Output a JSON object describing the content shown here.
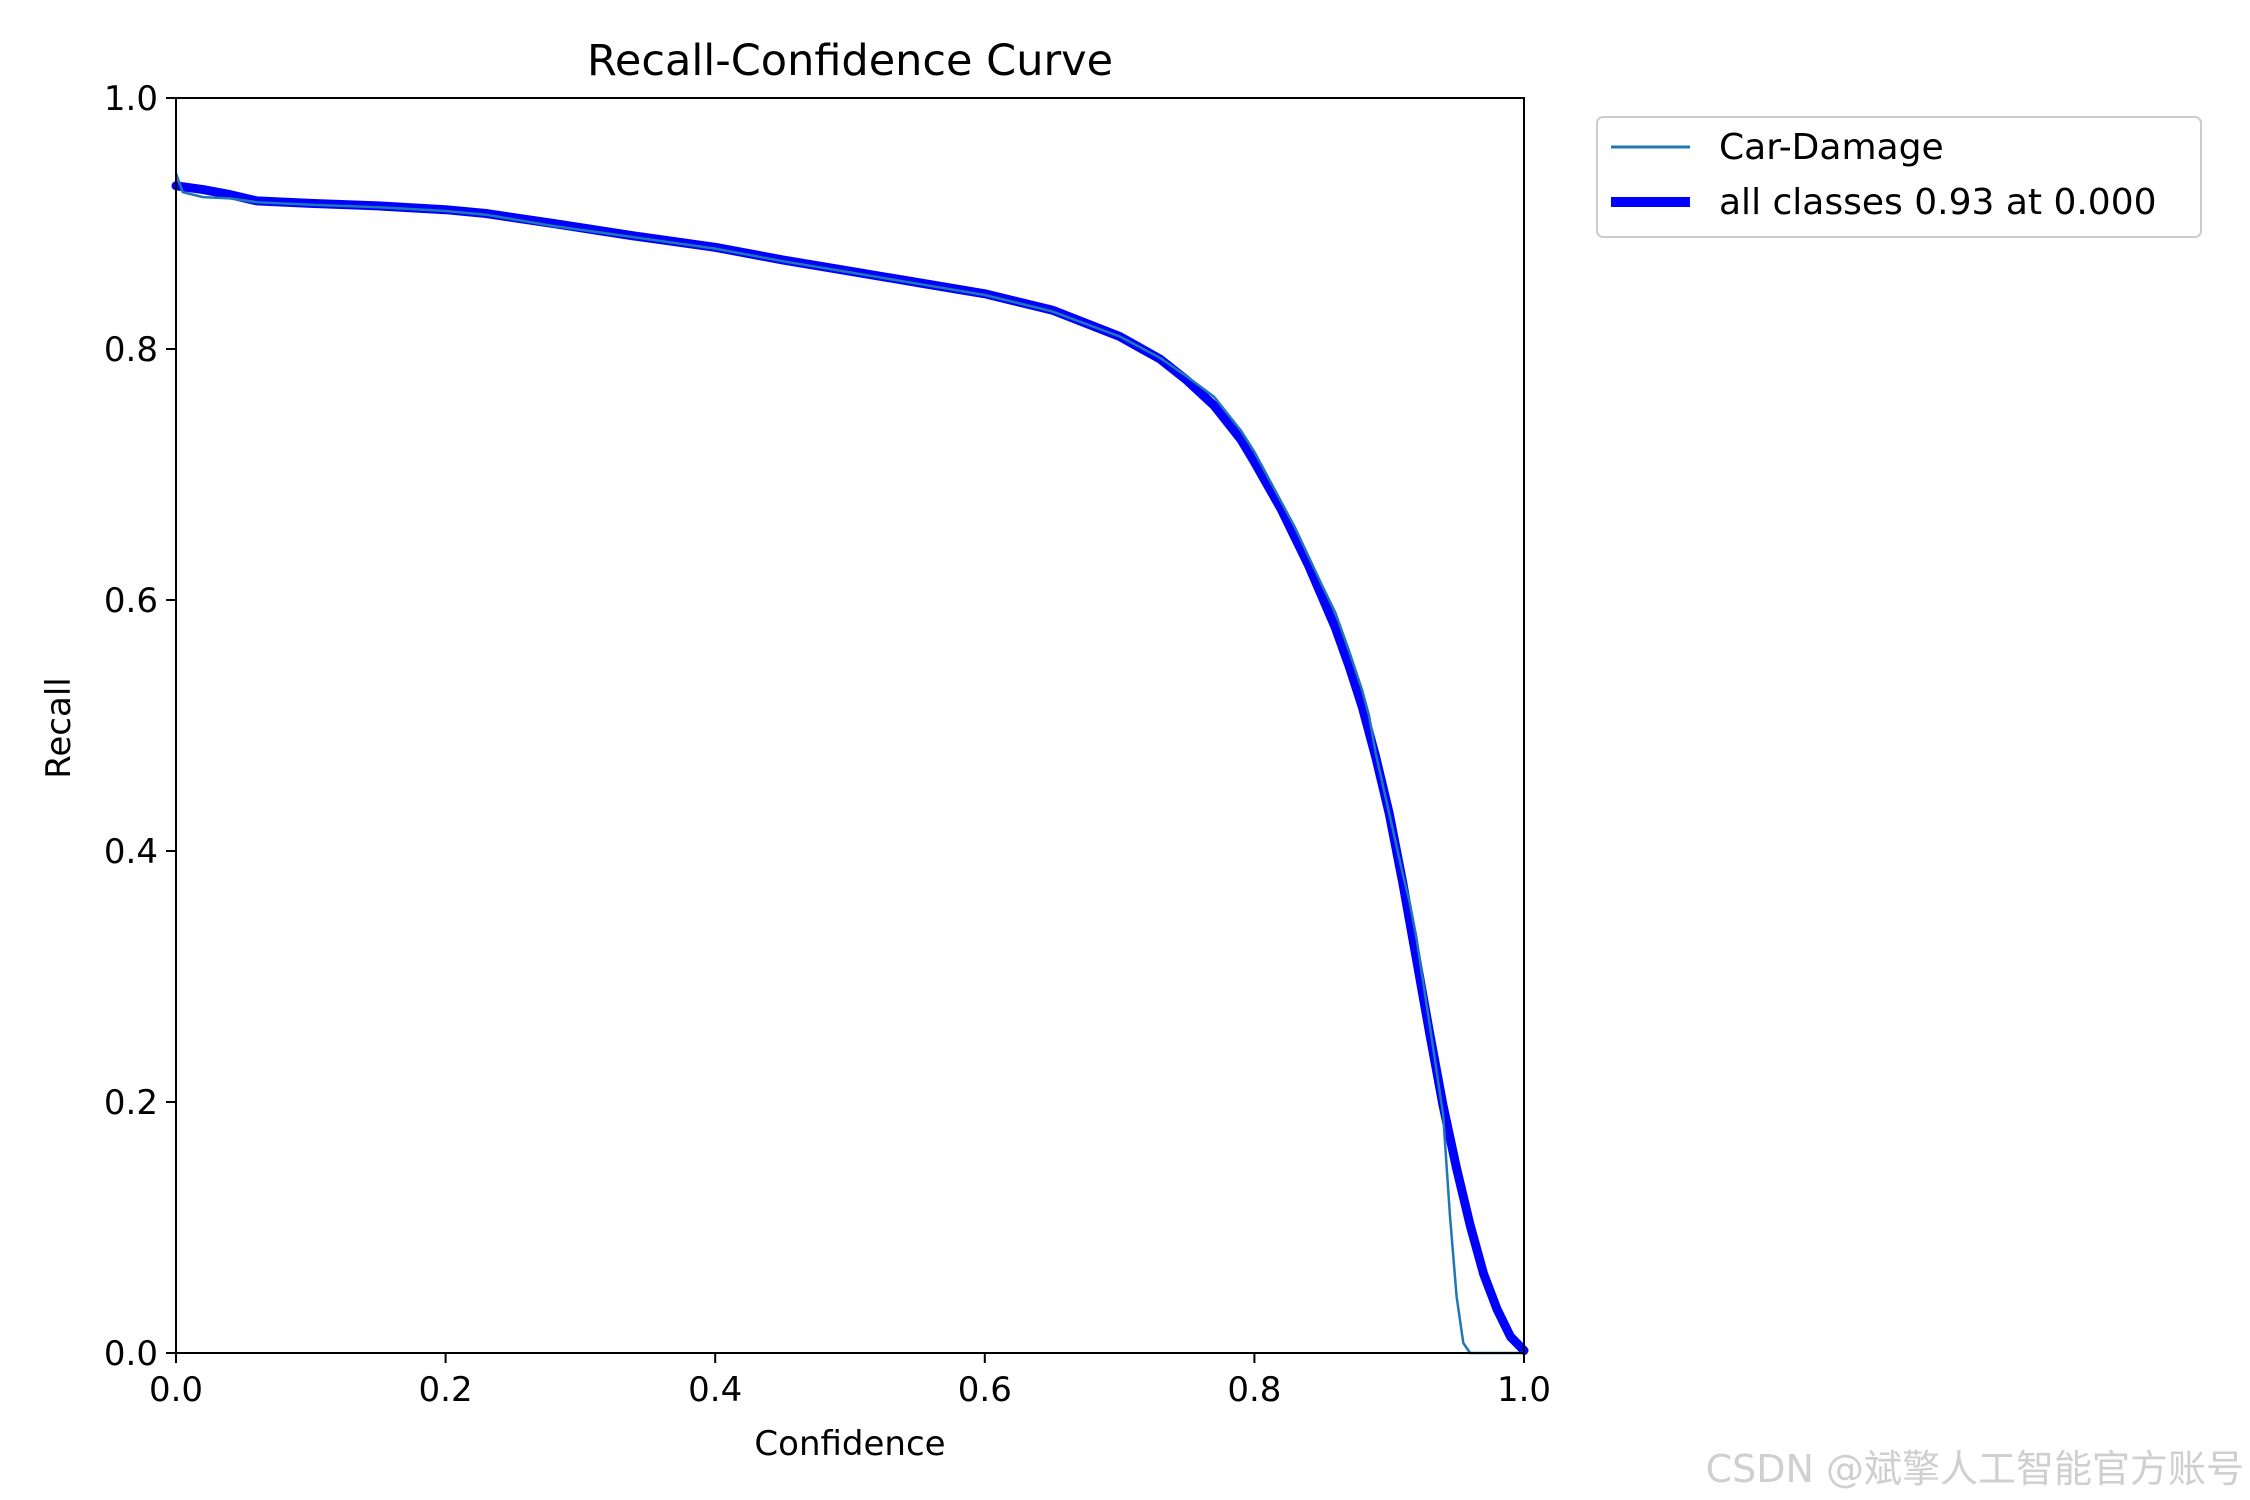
{
  "watermark": "CSDN @斌擎人工智能官方账号",
  "chart_data": {
    "type": "line",
    "title": "Recall-Confidence Curve",
    "xlabel": "Confidence",
    "ylabel": "Recall",
    "xlim": [
      0.0,
      1.0
    ],
    "ylim": [
      0.0,
      1.0
    ],
    "xticks": [
      "0.0",
      "0.2",
      "0.4",
      "0.6",
      "0.8",
      "1.0"
    ],
    "yticks": [
      "0.0",
      "0.2",
      "0.4",
      "0.6",
      "0.8",
      "1.0"
    ],
    "grid": false,
    "legend_position": "outside-top-right",
    "series": [
      {
        "name": "Car-Damage",
        "color": "#1f77b4",
        "style": "thin",
        "points": [
          [
            0.0,
            0.94
          ],
          [
            0.005,
            0.925
          ],
          [
            0.02,
            0.921
          ],
          [
            0.04,
            0.92
          ],
          [
            0.06,
            0.917
          ],
          [
            0.1,
            0.915
          ],
          [
            0.15,
            0.913
          ],
          [
            0.2,
            0.91
          ],
          [
            0.23,
            0.907
          ],
          [
            0.28,
            0.898
          ],
          [
            0.34,
            0.889
          ],
          [
            0.4,
            0.88
          ],
          [
            0.45,
            0.87
          ],
          [
            0.5,
            0.861
          ],
          [
            0.55,
            0.852
          ],
          [
            0.6,
            0.843
          ],
          [
            0.65,
            0.83
          ],
          [
            0.7,
            0.81
          ],
          [
            0.73,
            0.793
          ],
          [
            0.75,
            0.778
          ],
          [
            0.77,
            0.762
          ],
          [
            0.79,
            0.735
          ],
          [
            0.8,
            0.718
          ],
          [
            0.81,
            0.698
          ],
          [
            0.83,
            0.658
          ],
          [
            0.85,
            0.612
          ],
          [
            0.86,
            0.59
          ],
          [
            0.87,
            0.56
          ],
          [
            0.88,
            0.528
          ],
          [
            0.885,
            0.508
          ],
          [
            0.89,
            0.478
          ],
          [
            0.9,
            0.43
          ],
          [
            0.91,
            0.382
          ],
          [
            0.915,
            0.36
          ],
          [
            0.92,
            0.332
          ],
          [
            0.93,
            0.262
          ],
          [
            0.94,
            0.19
          ],
          [
            0.945,
            0.11
          ],
          [
            0.95,
            0.045
          ],
          [
            0.955,
            0.008
          ],
          [
            0.96,
            0.0
          ],
          [
            0.97,
            0.0
          ],
          [
            1.0,
            0.0
          ]
        ]
      },
      {
        "name": "all classes 0.93 at 0.000",
        "color": "#0000ff",
        "style": "thick",
        "points": [
          [
            0.0,
            0.93
          ],
          [
            0.02,
            0.927
          ],
          [
            0.04,
            0.923
          ],
          [
            0.06,
            0.918
          ],
          [
            0.1,
            0.916
          ],
          [
            0.15,
            0.914
          ],
          [
            0.2,
            0.911
          ],
          [
            0.23,
            0.908
          ],
          [
            0.28,
            0.9
          ],
          [
            0.34,
            0.89
          ],
          [
            0.4,
            0.881
          ],
          [
            0.45,
            0.871
          ],
          [
            0.5,
            0.862
          ],
          [
            0.55,
            0.853
          ],
          [
            0.6,
            0.844
          ],
          [
            0.65,
            0.831
          ],
          [
            0.7,
            0.81
          ],
          [
            0.73,
            0.792
          ],
          [
            0.75,
            0.775
          ],
          [
            0.77,
            0.755
          ],
          [
            0.79,
            0.728
          ],
          [
            0.8,
            0.71
          ],
          [
            0.82,
            0.672
          ],
          [
            0.84,
            0.628
          ],
          [
            0.86,
            0.578
          ],
          [
            0.87,
            0.548
          ],
          [
            0.88,
            0.515
          ],
          [
            0.89,
            0.475
          ],
          [
            0.9,
            0.43
          ],
          [
            0.91,
            0.375
          ],
          [
            0.92,
            0.315
          ],
          [
            0.93,
            0.255
          ],
          [
            0.94,
            0.197
          ],
          [
            0.95,
            0.147
          ],
          [
            0.96,
            0.102
          ],
          [
            0.97,
            0.063
          ],
          [
            0.98,
            0.035
          ],
          [
            0.99,
            0.013
          ],
          [
            1.0,
            0.002
          ]
        ]
      }
    ]
  }
}
